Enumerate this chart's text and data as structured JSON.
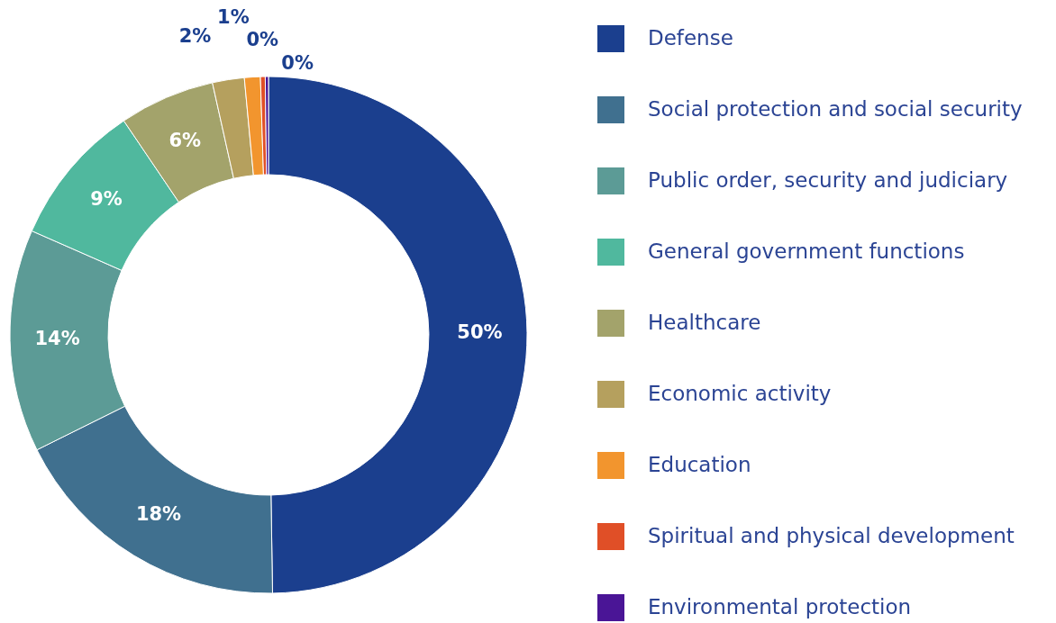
{
  "chart_data": {
    "type": "donut",
    "categories": [
      "Defense",
      "Social protection and social security",
      "Public order, security and judiciary",
      "General government functions",
      "Healthcare",
      "Economic activity",
      "Education",
      "Spiritual and physical development",
      "Environmental protection"
    ],
    "values": [
      50,
      18,
      14,
      9,
      6,
      2,
      1,
      0.3,
      0.2
    ],
    "value_labels": [
      "50%",
      "18%",
      "14%",
      "9%",
      "6%",
      "2%",
      "1%",
      "0%",
      "0%"
    ],
    "colors": [
      "#1b3f8e",
      "#40708f",
      "#5c9b96",
      "#50b89e",
      "#a3a36b",
      "#b5a05e",
      "#f2952e",
      "#e04f27",
      "#4a1596"
    ],
    "legend": "right"
  }
}
